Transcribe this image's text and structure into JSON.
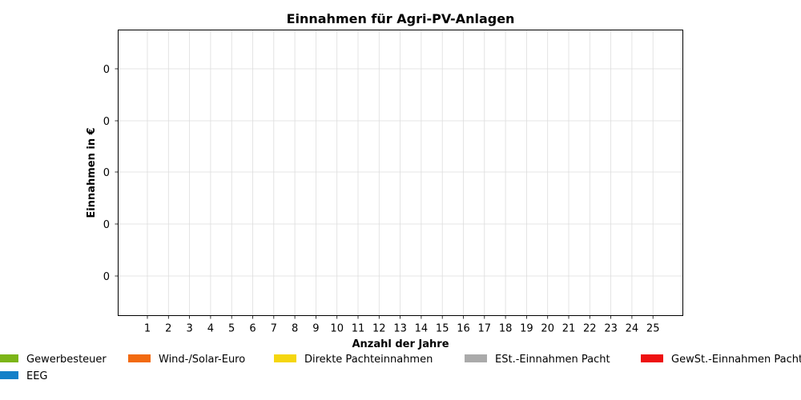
{
  "chart_data": {
    "type": "bar",
    "title": "Einnahmen für Agri-PV-Anlagen",
    "xlabel": "Anzahl der Jahre",
    "ylabel": "Einnahmen in €",
    "categories": [
      "1",
      "2",
      "3",
      "4",
      "5",
      "6",
      "7",
      "8",
      "9",
      "10",
      "11",
      "12",
      "13",
      "14",
      "15",
      "16",
      "17",
      "18",
      "19",
      "20",
      "21",
      "22",
      "23",
      "24",
      "25"
    ],
    "y_tick_labels": [
      "0",
      "0",
      "0",
      "0",
      "0"
    ],
    "grid": true,
    "legend_position": "bottom",
    "series": [
      {
        "name": "Gewerbesteuer",
        "color": "#7cb518",
        "values": [
          0,
          0,
          0,
          0,
          0,
          0,
          0,
          0,
          0,
          0,
          0,
          0,
          0,
          0,
          0,
          0,
          0,
          0,
          0,
          0,
          0,
          0,
          0,
          0,
          0
        ]
      },
      {
        "name": "Wind-/Solar-Euro",
        "color": "#f26a10",
        "values": [
          0,
          0,
          0,
          0,
          0,
          0,
          0,
          0,
          0,
          0,
          0,
          0,
          0,
          0,
          0,
          0,
          0,
          0,
          0,
          0,
          0,
          0,
          0,
          0,
          0
        ]
      },
      {
        "name": "Direkte Pachteinnahmen",
        "color": "#f5d60f",
        "values": [
          0,
          0,
          0,
          0,
          0,
          0,
          0,
          0,
          0,
          0,
          0,
          0,
          0,
          0,
          0,
          0,
          0,
          0,
          0,
          0,
          0,
          0,
          0,
          0,
          0
        ]
      },
      {
        "name": "ESt.-Einnahmen Pacht",
        "color": "#aaaaaa",
        "values": [
          0,
          0,
          0,
          0,
          0,
          0,
          0,
          0,
          0,
          0,
          0,
          0,
          0,
          0,
          0,
          0,
          0,
          0,
          0,
          0,
          0,
          0,
          0,
          0,
          0
        ]
      },
      {
        "name": "GewSt.-Einnahmen Pacht",
        "color": "#ee1111",
        "values": [
          0,
          0,
          0,
          0,
          0,
          0,
          0,
          0,
          0,
          0,
          0,
          0,
          0,
          0,
          0,
          0,
          0,
          0,
          0,
          0,
          0,
          0,
          0,
          0,
          0
        ]
      },
      {
        "name": "EEG",
        "color": "#1480c8",
        "values": [
          0,
          0,
          0,
          0,
          0,
          0,
          0,
          0,
          0,
          0,
          0,
          0,
          0,
          0,
          0,
          0,
          0,
          0,
          0,
          0,
          0,
          0,
          0,
          0,
          0
        ]
      }
    ]
  }
}
